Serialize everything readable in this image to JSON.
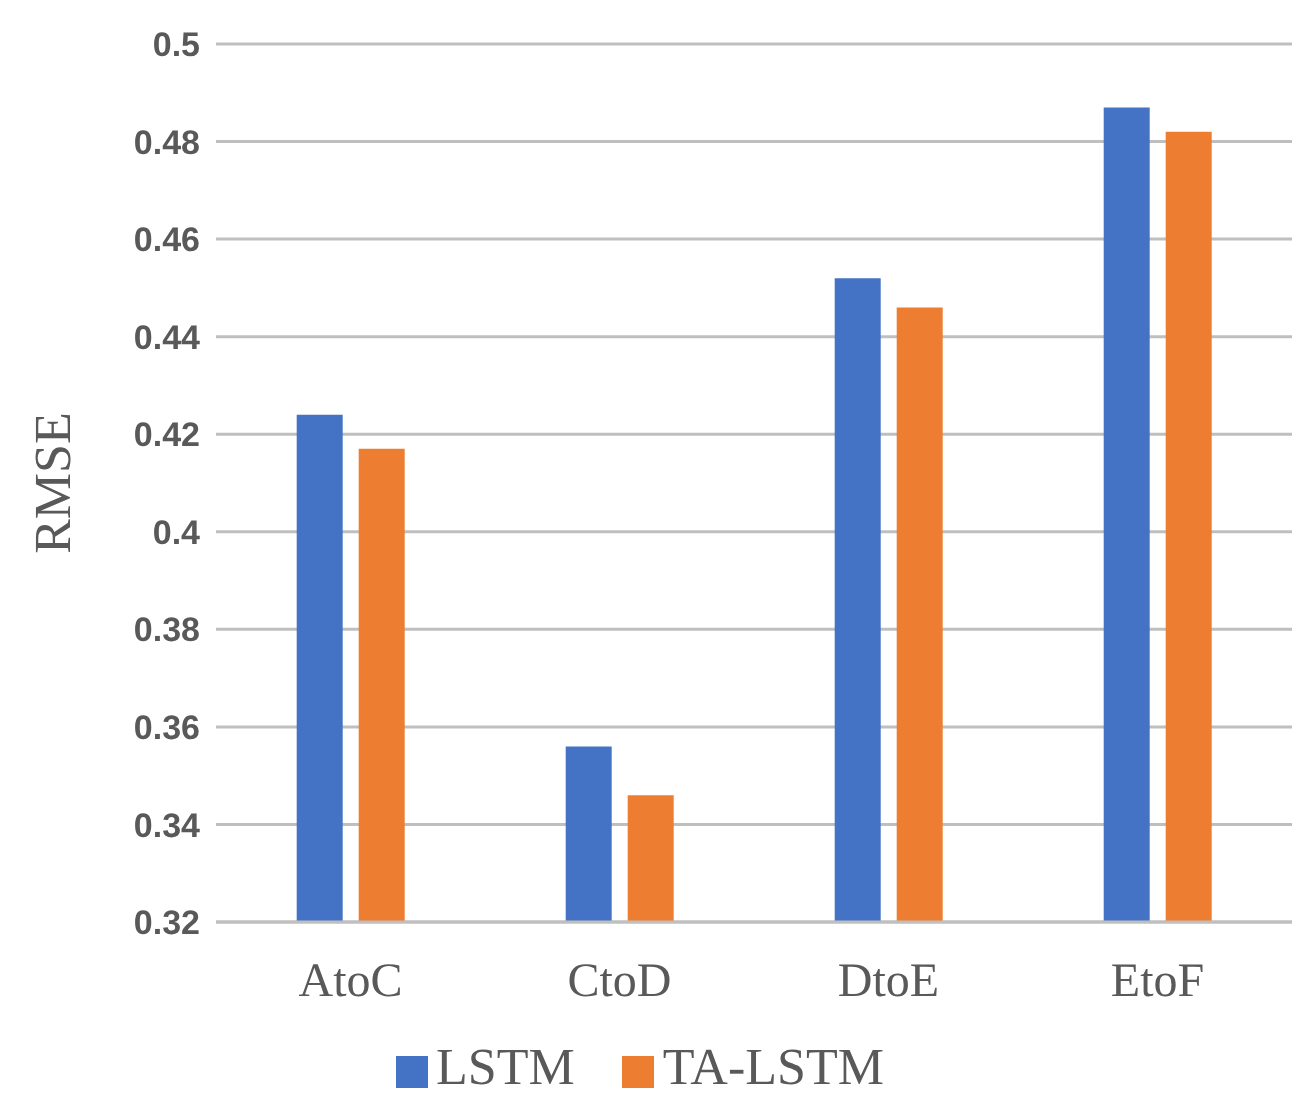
{
  "chart_data": {
    "type": "bar",
    "ylabel": "RMSE",
    "categories": [
      "AtoC",
      "CtoD",
      "DtoE",
      "EtoF"
    ],
    "series": [
      {
        "name": "LSTM",
        "color": "#4472c4",
        "values": [
          0.424,
          0.356,
          0.452,
          0.487
        ]
      },
      {
        "name": "TA-LSTM",
        "color": "#ed7d31",
        "values": [
          0.417,
          0.346,
          0.446,
          0.482
        ]
      }
    ],
    "ylim": [
      0.32,
      0.5
    ],
    "yticks": [
      0.32,
      0.34,
      0.36,
      0.38,
      0.4,
      0.42,
      0.44,
      0.46,
      0.48,
      0.5
    ],
    "grid": "y",
    "legend": "bottom"
  }
}
